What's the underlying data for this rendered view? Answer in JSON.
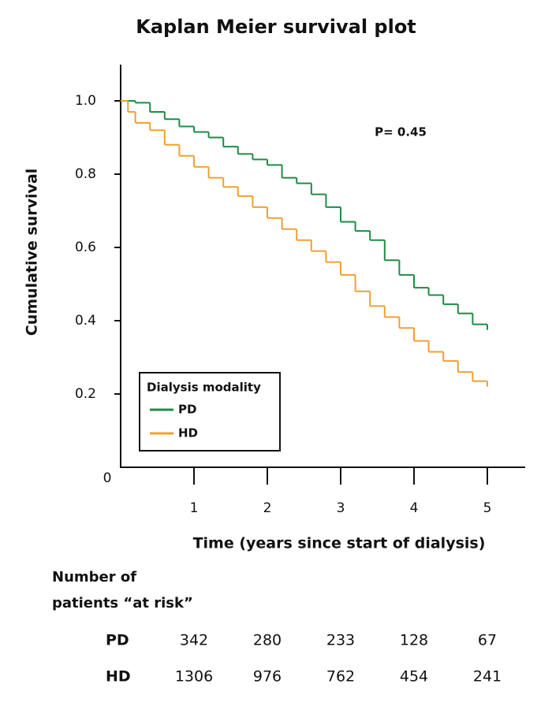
{
  "chart_data": {
    "type": "step",
    "title": "Kaplan Meier survival plot",
    "x_label": "Time (years since start of dialysis)",
    "y_label": "Cumulative survival",
    "annotation": "P= 0.45",
    "legend_title": "Dialysis modality",
    "legend_position": "lower left",
    "x": [
      0,
      0.1,
      0.2,
      0.4,
      0.6,
      0.8,
      1.0,
      1.2,
      1.4,
      1.6,
      1.8,
      2.0,
      2.2,
      2.4,
      2.6,
      2.8,
      3.0,
      3.2,
      3.4,
      3.6,
      3.8,
      4.0,
      4.2,
      4.4,
      4.6,
      4.8,
      5.0
    ],
    "series": [
      {
        "name": "PD",
        "color": "#1e8c45",
        "values": [
          1.0,
          1.0,
          0.995,
          0.97,
          0.95,
          0.93,
          0.915,
          0.9,
          0.875,
          0.855,
          0.84,
          0.825,
          0.79,
          0.775,
          0.745,
          0.71,
          0.67,
          0.645,
          0.62,
          0.565,
          0.525,
          0.49,
          0.47,
          0.445,
          0.42,
          0.39,
          0.375
        ]
      },
      {
        "name": "HD",
        "color": "#f0a030",
        "values": [
          1.0,
          0.97,
          0.94,
          0.92,
          0.88,
          0.85,
          0.82,
          0.79,
          0.765,
          0.74,
          0.71,
          0.68,
          0.65,
          0.62,
          0.59,
          0.56,
          0.525,
          0.48,
          0.44,
          0.41,
          0.38,
          0.345,
          0.315,
          0.29,
          0.26,
          0.235,
          0.22
        ]
      }
    ],
    "xlim": [
      0,
      5.5
    ],
    "ylim": [
      0,
      1.1
    ],
    "xticks": [
      1,
      2,
      3,
      4,
      5
    ],
    "yticks": [
      0,
      0.2,
      0.4,
      0.6,
      0.8,
      {
        "value": 1,
        "label": "1.0"
      }
    ],
    "at_risk": {
      "title_lines": [
        "Number of",
        "patients “at risk”"
      ],
      "rows": [
        {
          "name": "PD",
          "values": [
            342,
            280,
            233,
            128,
            67
          ]
        },
        {
          "name": "HD",
          "values": [
            1306,
            976,
            762,
            454,
            241
          ]
        }
      ]
    }
  }
}
